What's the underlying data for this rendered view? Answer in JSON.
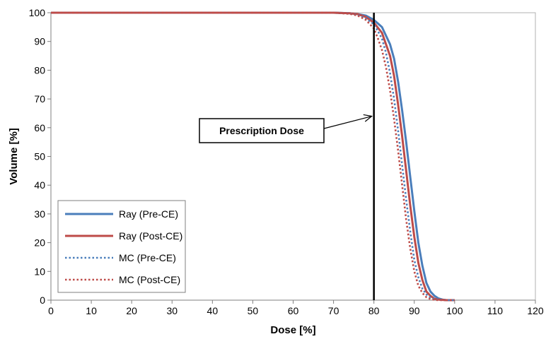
{
  "chart_data": {
    "type": "line",
    "title": "",
    "xlabel": "Dose [%]",
    "ylabel": "Volume [%]",
    "xlim": [
      0,
      120
    ],
    "ylim": [
      0,
      100
    ],
    "xticks": [
      0,
      10,
      20,
      30,
      40,
      50,
      60,
      70,
      80,
      90,
      100,
      110,
      120
    ],
    "yticks": [
      0,
      10,
      20,
      30,
      40,
      50,
      60,
      70,
      80,
      90,
      100
    ],
    "grid": false,
    "legend_position": "bottom-left",
    "annotation": {
      "text": "Prescription Dose",
      "dose_line_x": 80,
      "arrow_target": [
        80,
        64
      ]
    },
    "series": [
      {
        "name": "Ray (Pre-CE)",
        "color": "#4a7ebb",
        "style": "solid",
        "x": [
          0,
          60,
          70,
          74,
          76,
          78,
          80,
          82,
          84,
          85,
          86,
          87,
          88,
          89,
          90,
          91,
          92,
          93,
          94,
          95,
          96,
          97,
          98,
          100
        ],
        "y": [
          100,
          100,
          100,
          99.8,
          99.5,
          99,
          97.5,
          95,
          89,
          84,
          76,
          66,
          55,
          43,
          31,
          20,
          12,
          6,
          3,
          1.5,
          0.6,
          0.2,
          0,
          0
        ]
      },
      {
        "name": "Ray (Post-CE)",
        "color": "#be4b48",
        "style": "solid",
        "x": [
          0,
          60,
          70,
          74,
          76,
          78,
          80,
          82,
          84,
          85,
          86,
          87,
          88,
          89,
          90,
          91,
          92,
          93,
          94,
          95,
          96,
          98,
          100
        ],
        "y": [
          100,
          100,
          100,
          99.8,
          99.5,
          98.5,
          96.5,
          93,
          85,
          78,
          68,
          57,
          45,
          33,
          22,
          13,
          7,
          3,
          1.5,
          0.5,
          0.2,
          0,
          0
        ]
      },
      {
        "name": "MC (Pre-CE)",
        "color": "#4a7ebb",
        "style": "dotted",
        "x": [
          0,
          60,
          70,
          74,
          76,
          78,
          80,
          82,
          83,
          84,
          85,
          86,
          87,
          88,
          89,
          90,
          91,
          92,
          93,
          94,
          95,
          96,
          98,
          100
        ],
        "y": [
          100,
          100,
          100,
          99.7,
          99.2,
          98,
          96,
          91,
          86,
          79,
          70,
          59,
          47,
          35,
          24,
          14,
          8,
          4,
          2,
          1,
          0.4,
          0.1,
          0,
          0
        ]
      },
      {
        "name": "MC (Post-CE)",
        "color": "#be4b48",
        "style": "dotted",
        "x": [
          0,
          60,
          70,
          74,
          76,
          78,
          80,
          81,
          82,
          83,
          84,
          85,
          86,
          87,
          88,
          89,
          90,
          91,
          92,
          93,
          94,
          95,
          96,
          98
        ],
        "y": [
          100,
          100,
          100,
          99.6,
          99,
          97.5,
          94.5,
          91,
          87,
          81,
          73,
          63,
          52,
          40,
          28,
          18,
          10,
          5,
          2.5,
          1,
          0.4,
          0.1,
          0,
          0
        ]
      }
    ]
  }
}
